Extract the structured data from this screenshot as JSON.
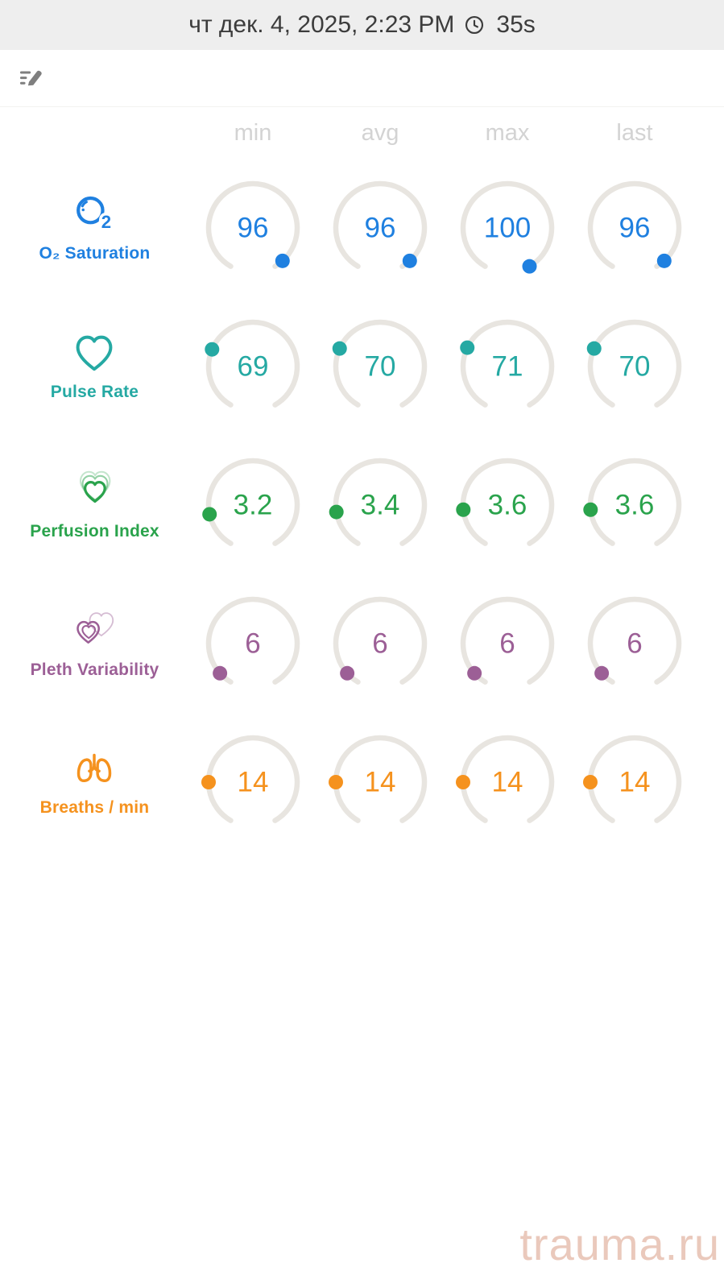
{
  "header": {
    "date_label": "чт дек. 4, 2025, 2:23 PM",
    "duration_label": "35s",
    "clock_icon": "clock-icon"
  },
  "toolbar": {
    "edit_button_icon": "edit-note-icon"
  },
  "columns": [
    "min",
    "avg",
    "max",
    "last"
  ],
  "metrics": [
    {
      "id": "o2-saturation",
      "label": "O₂ Saturation",
      "icon": "o2-bubble-icon",
      "color_key": "accent_blue",
      "gauge_min": 0,
      "gauge_max": 100,
      "values": [
        "96",
        "96",
        "100",
        "96"
      ]
    },
    {
      "id": "pulse-rate",
      "label": "Pulse Rate",
      "icon": "heart-icon",
      "color_key": "accent_teal",
      "gauge_min": 0,
      "gauge_max": 250,
      "values": [
        "69",
        "70",
        "71",
        "70"
      ]
    },
    {
      "id": "perfusion-index",
      "label": "Perfusion Index",
      "icon": "heart-echo-icon",
      "color_key": "accent_green",
      "gauge_min": 0,
      "gauge_max": 20,
      "values": [
        "3.2",
        "3.4",
        "3.6",
        "3.6"
      ]
    },
    {
      "id": "pleth-variability",
      "label": "Pleth Variability",
      "icon": "double-heart-icon",
      "color_key": "accent_plum",
      "gauge_min": 0,
      "gauge_max": 100,
      "values": [
        "6",
        "6",
        "6",
        "6"
      ]
    },
    {
      "id": "breaths-per-min",
      "label": "Breaths / min",
      "icon": "lungs-icon",
      "color_key": "accent_orange",
      "gauge_min": 0,
      "gauge_max": 70,
      "values": [
        "14",
        "14",
        "14",
        "14"
      ]
    }
  ],
  "watermark": "trauma.ru",
  "colors": {
    "accent_blue": "#1f80e0",
    "accent_teal": "#25a9a3",
    "accent_green": "#2aa34c",
    "accent_plum": "#9c5f96",
    "accent_orange": "#f5921e",
    "gauge_track": "#e8e5e0",
    "header_bg": "#eeeeee",
    "header_text": "#3c3c3c",
    "column_header_text": "#d3d3d3",
    "toolbar_icon": "#7f7f7f",
    "watermark_pink": "#eac9bc"
  }
}
